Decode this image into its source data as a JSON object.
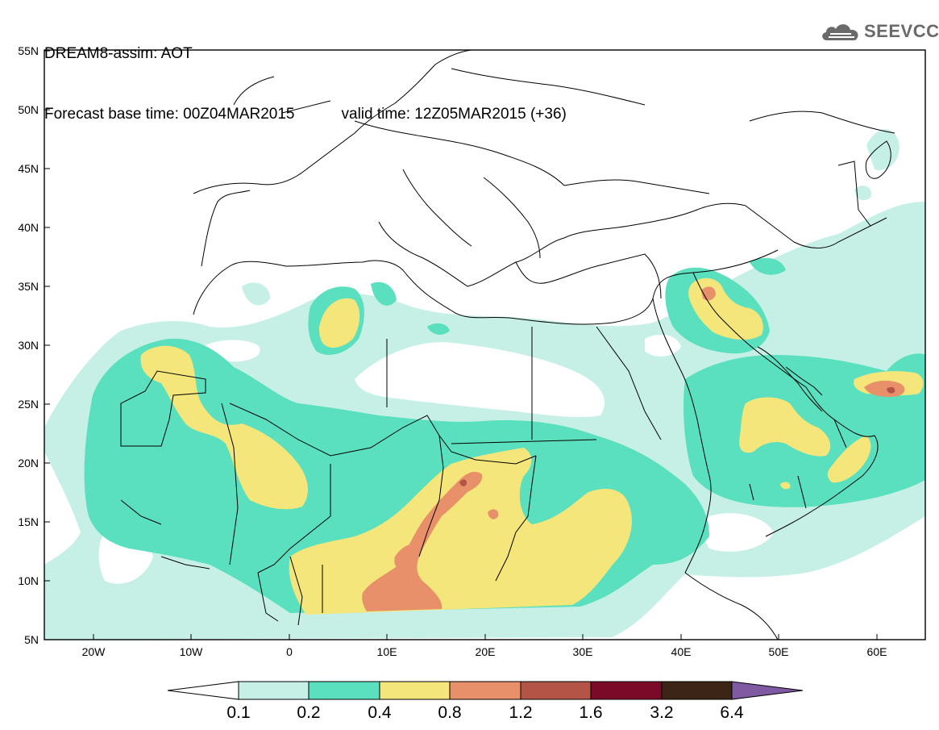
{
  "header": {
    "title": "DREAM8-assim: AOT",
    "base_time": "Forecast base time: 00Z04MAR2015",
    "valid_time": "valid time: 12Z05MAR2015 (+36)"
  },
  "logo": {
    "text": "SEEVCCC",
    "icon": "cloud-icon"
  },
  "map": {
    "field": "AOT",
    "lon_range": [
      -25,
      65
    ],
    "lat_range": [
      5,
      55
    ],
    "lat_labels": [
      "5N",
      "10N",
      "15N",
      "20N",
      "25N",
      "30N",
      "35N",
      "40N",
      "45N",
      "50N",
      "55N"
    ],
    "lon_labels": [
      "20W",
      "10W",
      "0",
      "10E",
      "20E",
      "30E",
      "40E",
      "50E",
      "60E"
    ]
  },
  "colorbar": {
    "labels": [
      "0.1",
      "0.2",
      "0.4",
      "0.8",
      "1.2",
      "1.6",
      "3.2",
      "6.4"
    ],
    "colors": [
      "#ffffff",
      "#c6f0e6",
      "#5ae0be",
      "#f4e67a",
      "#e8906a",
      "#b45446",
      "#7a0a28",
      "#3c2416",
      "#7f5aa2"
    ]
  },
  "colors": {
    "level1": "#c6f0e6",
    "level2": "#5ae0be",
    "level3": "#f4e67a",
    "level4": "#e8906a",
    "level5": "#b45446",
    "border": "#000000"
  }
}
